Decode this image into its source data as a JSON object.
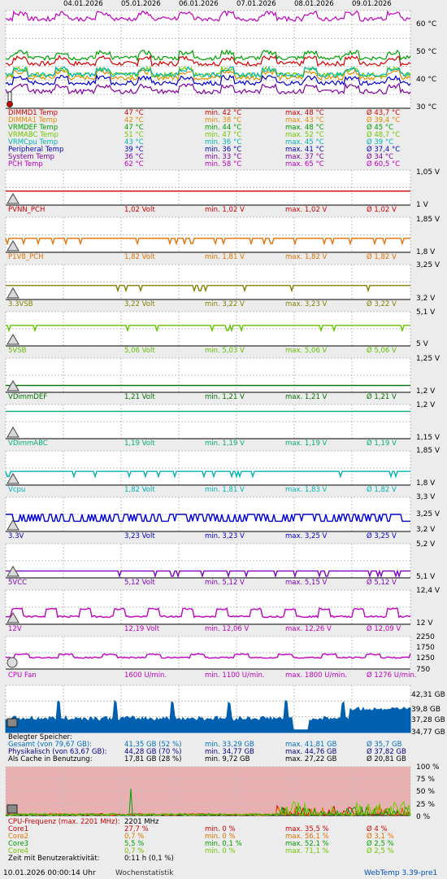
{
  "dates": [
    "04.01.2026",
    "05.01.2026",
    "06.01.2026",
    "07.01.2026",
    "08.01.2026",
    "09.01.2026"
  ],
  "panels": [
    {
      "id": "temps",
      "type": "multi-line",
      "y_ticks": [
        "60 °C",
        "50 °C",
        "40 °C",
        "30 °C"
      ],
      "ylim": [
        30,
        65
      ],
      "icon": "thermometer-icon",
      "series": [
        {
          "name": "DIMMD1 Temp",
          "color": "#d00000",
          "current": "47 °C",
          "min": "min. 42 °C",
          "max": "max. 48 °C",
          "avg": "Ø 43,7 °C"
        },
        {
          "name": "DIMMA1 Temp",
          "color": "#e08a00",
          "current": "42 °C",
          "min": "min. 38 °C",
          "max": "max. 43 °C",
          "avg": "Ø 39,4 °C"
        },
        {
          "name": "VRMDEF Temp",
          "color": "#00a000",
          "current": "47 °C",
          "min": "min. 44 °C",
          "max": "max. 48 °C",
          "avg": "Ø 45 °C"
        },
        {
          "name": "VRMABC Temp",
          "color": "#70c800",
          "current": "51 °C",
          "min": "min. 47 °C",
          "max": "max. 52 °C",
          "avg": "Ø 48,7 °C"
        },
        {
          "name": "VRMCpu Temp",
          "color": "#00b4b4",
          "current": "43 °C",
          "min": "min. 36 °C",
          "max": "max. 45 °C",
          "avg": "Ø 39 °C"
        },
        {
          "name": "Peripheral Temp",
          "color": "#0000c8",
          "current": "39 °C",
          "min": "min. 36 °C",
          "max": "max. 41 °C",
          "avg": "Ø 37,4 °C"
        },
        {
          "name": "System Temp",
          "color": "#8000a0",
          "current": "36 °C",
          "min": "min. 33 °C",
          "max": "max. 37 °C",
          "avg": "Ø 34 °C"
        },
        {
          "name": "PCH Temp",
          "color": "#c000c0",
          "current": "62 °C",
          "min": "min. 58 °C",
          "max": "max. 65 °C",
          "avg": "Ø 60,5 °C"
        }
      ]
    },
    {
      "id": "pvnn",
      "type": "line",
      "name": "PVNN_PCH",
      "color": "#d00000",
      "y_ticks": [
        "1,05 V",
        "1 V"
      ],
      "ylim": [
        1.0,
        1.05
      ],
      "icon": "warning-icon",
      "current": "1,02 Volt",
      "min": "min. 1,02 V",
      "max": "max. 1,02 V",
      "avg": "Ø 1,02 V",
      "base": 1.02
    },
    {
      "id": "p1v8",
      "type": "line",
      "name": "P1V8_PCH",
      "color": "#e07000",
      "y_ticks": [
        "1,85 V",
        "1,8 V"
      ],
      "ylim": [
        1.8,
        1.85
      ],
      "icon": "warning-icon",
      "current": "1,82 Volt",
      "min": "min. 1,81 V",
      "max": "max. 1,82 V",
      "avg": "Ø 1,82 V",
      "base": 1.82
    },
    {
      "id": "v3vsb",
      "type": "line",
      "name": "3.3VSB",
      "color": "#808000",
      "y_ticks": [
        "3,25 V",
        "3,2 V"
      ],
      "ylim": [
        3.2,
        3.25
      ],
      "icon": "warning-icon",
      "current": "3,22 Volt",
      "min": "min. 3,22 V",
      "max": "max. 3,23 V",
      "avg": "Ø 3,22 V",
      "base": 3.22
    },
    {
      "id": "v5vsb",
      "type": "line",
      "name": "5VSB",
      "color": "#60c000",
      "y_ticks": [
        "5,1 V",
        "5 V"
      ],
      "ylim": [
        5.0,
        5.1
      ],
      "icon": "warning-icon",
      "current": "5,06 Volt",
      "min": "min. 5,03 V",
      "max": "max. 5,06 V",
      "avg": "Ø 5,06 V",
      "base": 5.06
    },
    {
      "id": "vdimmdef",
      "type": "line",
      "name": "VDimmDEF",
      "color": "#007000",
      "y_ticks": [
        "1,25 V",
        "1,2 V"
      ],
      "ylim": [
        1.2,
        1.25
      ],
      "icon": "warning-icon",
      "current": "1,21 Volt",
      "min": "min. 1,21 V",
      "max": "max. 1,21 V",
      "avg": "Ø 1,21 V",
      "base": 1.21
    },
    {
      "id": "vdimmabc",
      "type": "line",
      "name": "VDimmABC",
      "color": "#00b070",
      "y_ticks": [
        "1,2 V",
        "1,15 V"
      ],
      "ylim": [
        1.15,
        1.2
      ],
      "icon": "warning-icon",
      "current": "1,19 Volt",
      "min": "min. 1,19 V",
      "max": "max. 1,19 V",
      "avg": "Ø 1,19 V",
      "base": 1.19
    },
    {
      "id": "vcpu",
      "type": "line",
      "name": "Vcpu",
      "color": "#00b4b4",
      "y_ticks": [
        "1,85 V",
        "1,8 V"
      ],
      "ylim": [
        1.8,
        1.85
      ],
      "icon": "warning-icon",
      "current": "1,82 Volt",
      "min": "min. 1,81 V",
      "max": "max. 1,83 V",
      "avg": "Ø 1,82 V",
      "base": 1.82
    },
    {
      "id": "v33",
      "type": "line",
      "name": "3.3V",
      "color": "#0000d0",
      "y_ticks": [
        "3,3 V",
        "3,25 V",
        "3,2 V"
      ],
      "ylim": [
        3.2,
        3.3
      ],
      "icon": "warning-icon",
      "current": "3,23 Volt",
      "min": "min. 3,23 V",
      "max": "max. 3,25 V",
      "avg": "Ø 3,25 V",
      "base": 3.24
    },
    {
      "id": "v5",
      "type": "line",
      "name": "5VCC",
      "color": "#8000c0",
      "y_ticks": [
        "5,2 V",
        "5,1 V"
      ],
      "ylim": [
        5.1,
        5.2
      ],
      "icon": "warning-icon",
      "current": "5,12 Volt",
      "min": "min. 5,12 V",
      "max": "max. 5,15 V",
      "avg": "Ø 5,12 V",
      "base": 5.12
    },
    {
      "id": "v12",
      "type": "line",
      "name": "12V",
      "color": "#c000c0",
      "y_ticks": [
        "12,4 V",
        "12 V"
      ],
      "ylim": [
        12.0,
        12.4
      ],
      "icon": "warning-icon",
      "current": "12,19 Volt",
      "min": "min. 12,06 V",
      "max": "max. 12,26 V",
      "avg": "Ø 12,09 V",
      "base": 12.09
    },
    {
      "id": "fan",
      "type": "line",
      "name": "CPU Fan",
      "color": "#c000c0",
      "y_ticks": [
        "2250",
        "1750",
        "1250",
        "750"
      ],
      "ylim": [
        750,
        2250
      ],
      "icon": "fan-icon",
      "current": "1600 U/min.",
      "min": "min. 1100 U/min.",
      "max": "max. 1800 U/min.",
      "avg": "Ø 1276 U/min.",
      "base": 1276
    }
  ],
  "memory": {
    "y_ticks": [
      "42,31 GB",
      "39,8 GB",
      "37,28 GB",
      "34,77 GB"
    ],
    "ylim": [
      34.77,
      42.31
    ],
    "icon": "memory-chip-icon",
    "title": "Belegter Speicher:",
    "rows": [
      {
        "label": "Gesamt (von 79,67 GB):",
        "color": "#0070c0",
        "current": "41,35 GB (52 %)",
        "min": "min. 33,29 GB",
        "max": "max. 41,81 GB",
        "avg": "Ø 35,7 GB"
      },
      {
        "label": "Physikalisch (von 63,67 GB):",
        "color": "#00008b",
        "current": "44,28 GB (70 %)",
        "min": "min. 34,77 GB",
        "max": "max. 44,76 GB",
        "avg": "Ø 37,82 GB"
      },
      {
        "label": "Als Cache in Benutzung:",
        "color": "#000000",
        "current": "17,81 GB (28 %)",
        "min": "min. 9,72 GB",
        "max": "max. 27,22 GB",
        "avg": "Ø 20,81 GB"
      }
    ]
  },
  "cpu": {
    "y_ticks": [
      "100 %",
      "75 %",
      "50 %",
      "25 %",
      "0 %"
    ],
    "ylim": [
      0,
      100
    ],
    "icon": "cpu-icon",
    "freq_label": "CPU-Frequenz (max. 2201 MHz):",
    "freq_value": "2201 MHz",
    "cores": [
      {
        "name": "Core1",
        "color": "#d00000",
        "current": "27,7 %",
        "min": "min. 0 %",
        "max": "max. 35,5 %",
        "avg": "Ø 4 %"
      },
      {
        "name": "Core2",
        "color": "#e07000",
        "current": "0,7 %",
        "min": "min. 0 %",
        "max": "max. 56,1 %",
        "avg": "Ø 3,1 %"
      },
      {
        "name": "Core3",
        "color": "#00a000",
        "current": "5,5 %",
        "min": "min. 0,1 %",
        "max": "max. 52,1 %",
        "avg": "Ø 2,5 %"
      },
      {
        "name": "Core4",
        "color": "#70c800",
        "current": "0,7 %",
        "min": "min. 0 %",
        "max": "max. 71,1 %",
        "avg": "Ø 2,5 %"
      }
    ],
    "activity_label": "Zeit mit Benutzeraktivität:",
    "activity_value": "0:11 h (0,1 %)"
  },
  "footer": {
    "timestamp": "10.01.2026 00:00:14 Uhr",
    "period": "Wochenstatistik",
    "app": "WebTemp 3.39-pre1"
  },
  "colors": {
    "plot_bg": "#ffffff",
    "grid": "#c0c0c0",
    "memory_fill": "#0060b0",
    "cpu_bg": "#e8b0b0"
  }
}
